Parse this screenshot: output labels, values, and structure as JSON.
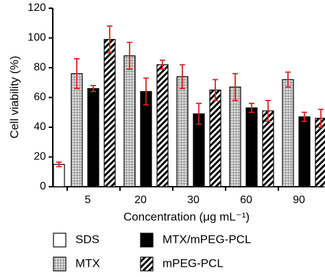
{
  "chart_data": {
    "type": "bar",
    "ylabel": "Cell viability (%)",
    "xlabel": "Concentration (μg mL⁻¹)",
    "categories": [
      null,
      "5",
      "20",
      "30",
      "60",
      "90"
    ],
    "series": [
      {
        "name": "SDS",
        "color": "#ffffff",
        "pattern": "solid",
        "values": [
          15,
          null,
          null,
          null,
          null,
          null
        ],
        "errors": [
          1.5,
          null,
          null,
          null,
          null,
          null
        ]
      },
      {
        "name": "MTX",
        "color": "#9a9a9a",
        "pattern": "grid",
        "values": [
          null,
          76,
          88,
          74,
          67,
          72
        ],
        "errors": [
          null,
          10,
          9,
          8,
          9,
          5
        ]
      },
      {
        "name": "MTX/mPEG-PCL",
        "color": "#000000",
        "pattern": "solid",
        "values": [
          null,
          66,
          64,
          49,
          53,
          47
        ],
        "errors": [
          null,
          2,
          9,
          7,
          3,
          3
        ]
      },
      {
        "name": "mPEG-PCL",
        "color": "#000000",
        "pattern": "hatch",
        "values": [
          null,
          99,
          82,
          65,
          51,
          46
        ],
        "errors": [
          null,
          9,
          3,
          7,
          7,
          6
        ]
      }
    ],
    "error_color": "#e02020",
    "ylim": [
      0,
      120
    ],
    "yticks": [
      0,
      20,
      40,
      60,
      80,
      100,
      120
    ],
    "legend": "bottom"
  }
}
